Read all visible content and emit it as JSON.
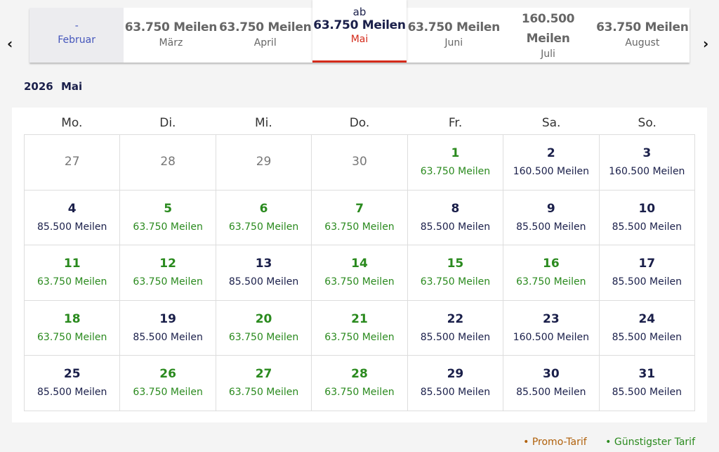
{
  "nav": {
    "prev": "‹",
    "next": "›"
  },
  "tabs": [
    {
      "price": "-",
      "month": "Februar",
      "state": "disabled"
    },
    {
      "price": "63.750 Meilen",
      "month": "März"
    },
    {
      "price": "63.750 Meilen",
      "month": "April"
    },
    {
      "prefix": "ab",
      "price": "63.750 Meilen",
      "month": "Mai",
      "state": "selected"
    },
    {
      "price": "63.750 Meilen",
      "month": "Juni"
    },
    {
      "price": "160.500 Meilen",
      "month": "Juli",
      "two": true
    },
    {
      "price": "63.750 Meilen",
      "month": "August"
    }
  ],
  "title": "2026 Mai",
  "weekdays": [
    "Mo.",
    "Di.",
    "Mi.",
    "Do.",
    "Fr.",
    "Sa.",
    "So."
  ],
  "days": [
    {
      "d": "27",
      "muted": true
    },
    {
      "d": "28",
      "muted": true
    },
    {
      "d": "29",
      "muted": true
    },
    {
      "d": "30",
      "muted": true
    },
    {
      "d": "1",
      "p": "63.750 Meilen",
      "c": true
    },
    {
      "d": "2",
      "p": "160.500 Meilen"
    },
    {
      "d": "3",
      "p": "160.500 Meilen"
    },
    {
      "d": "4",
      "p": "85.500 Meilen"
    },
    {
      "d": "5",
      "p": "63.750 Meilen",
      "c": true
    },
    {
      "d": "6",
      "p": "63.750 Meilen",
      "c": true
    },
    {
      "d": "7",
      "p": "63.750 Meilen",
      "c": true
    },
    {
      "d": "8",
      "p": "85.500 Meilen"
    },
    {
      "d": "9",
      "p": "85.500 Meilen"
    },
    {
      "d": "10",
      "p": "85.500 Meilen"
    },
    {
      "d": "11",
      "p": "63.750 Meilen",
      "c": true
    },
    {
      "d": "12",
      "p": "63.750 Meilen",
      "c": true
    },
    {
      "d": "13",
      "p": "85.500 Meilen"
    },
    {
      "d": "14",
      "p": "63.750 Meilen",
      "c": true
    },
    {
      "d": "15",
      "p": "63.750 Meilen",
      "c": true
    },
    {
      "d": "16",
      "p": "63.750 Meilen",
      "c": true
    },
    {
      "d": "17",
      "p": "85.500 Meilen"
    },
    {
      "d": "18",
      "p": "63.750 Meilen",
      "c": true
    },
    {
      "d": "19",
      "p": "85.500 Meilen"
    },
    {
      "d": "20",
      "p": "63.750 Meilen",
      "c": true
    },
    {
      "d": "21",
      "p": "63.750 Meilen",
      "c": true
    },
    {
      "d": "22",
      "p": "85.500 Meilen"
    },
    {
      "d": "23",
      "p": "160.500 Meilen"
    },
    {
      "d": "24",
      "p": "85.500 Meilen"
    },
    {
      "d": "25",
      "p": "85.500 Meilen"
    },
    {
      "d": "26",
      "p": "63.750 Meilen",
      "c": true
    },
    {
      "d": "27",
      "p": "63.750 Meilen",
      "c": true
    },
    {
      "d": "28",
      "p": "63.750 Meilen",
      "c": true
    },
    {
      "d": "29",
      "p": "85.500 Meilen"
    },
    {
      "d": "30",
      "p": "85.500 Meilen"
    },
    {
      "d": "31",
      "p": "85.500 Meilen"
    }
  ],
  "legend": {
    "promo": "• Promo-Tarif",
    "cheapest": "• Günstigster Tarif"
  },
  "colors": {
    "promo": "#b0600a",
    "cheapest": "#2a8a1e",
    "selected": "#d42a1a"
  }
}
